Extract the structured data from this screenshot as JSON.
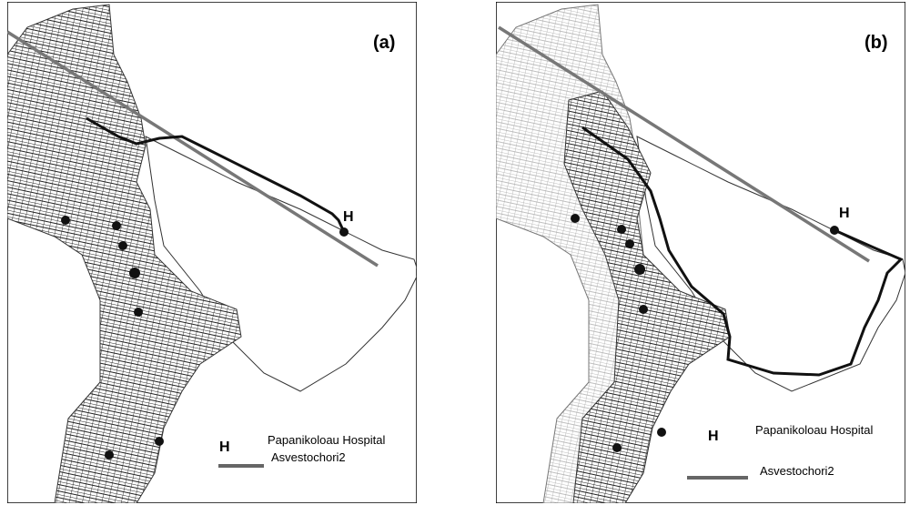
{
  "panels": [
    {
      "label": "(a)",
      "hospital_marker": "H",
      "legend": {
        "hospital_marker": "H",
        "hospital_label": "Papanikoloau Hospital",
        "route_label": "Asvestochori2"
      }
    },
    {
      "label": "(b)",
      "hospital_marker": "H",
      "legend": {
        "hospital_marker": "H",
        "hospital_label": "Papanikoloau Hospital",
        "route_label": "Asvestochori2"
      }
    }
  ]
}
